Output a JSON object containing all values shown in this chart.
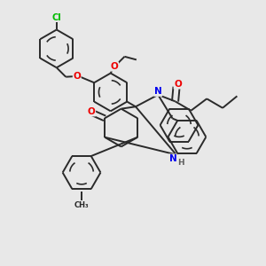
{
  "bg": "#e8e8e8",
  "bond_color": "#2a2a2a",
  "atom_colors": {
    "N": "#0000ee",
    "O": "#ee0000",
    "Cl": "#00bb00"
  },
  "lw": 1.4,
  "ring_r": 0.058
}
